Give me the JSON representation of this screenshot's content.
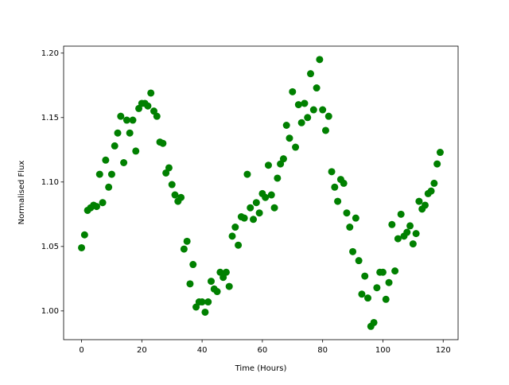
{
  "chart_data": {
    "type": "scatter",
    "xlabel": "Time (Hours)",
    "ylabel": "Normalised Flux",
    "color": "#008000",
    "x": [
      0,
      1,
      2,
      3,
      4,
      5,
      6,
      7,
      8,
      9,
      10,
      11,
      12,
      13,
      14,
      15,
      16,
      17,
      18,
      19,
      20,
      21,
      22,
      23,
      24,
      25,
      26,
      27,
      28,
      29,
      30,
      31,
      32,
      33,
      34,
      35,
      36,
      37,
      38,
      39,
      40,
      41,
      42,
      43,
      44,
      45,
      46,
      47,
      48,
      49,
      50,
      51,
      52,
      53,
      54,
      55,
      56,
      57,
      58,
      59,
      60,
      61,
      62,
      63,
      64,
      65,
      66,
      67,
      68,
      69,
      70,
      71,
      72,
      73,
      74,
      75,
      76,
      77,
      78,
      79,
      80,
      81,
      82,
      83,
      84,
      85,
      86,
      87,
      88,
      89,
      90,
      91,
      92,
      93,
      94,
      95,
      96,
      97,
      98,
      99,
      100,
      101,
      102,
      103,
      104,
      105,
      106,
      107,
      108,
      109,
      110,
      111,
      112,
      113,
      114,
      115,
      116,
      117,
      118,
      119
    ],
    "values": [
      1.049,
      1.059,
      1.078,
      1.08,
      1.082,
      1.081,
      1.106,
      1.084,
      1.117,
      1.096,
      1.106,
      1.128,
      1.138,
      1.151,
      1.115,
      1.148,
      1.138,
      1.148,
      1.124,
      1.157,
      1.161,
      1.161,
      1.159,
      1.169,
      1.155,
      1.151,
      1.131,
      1.13,
      1.107,
      1.111,
      1.098,
      1.09,
      1.085,
      1.088,
      1.048,
      1.054,
      1.021,
      1.036,
      1.003,
      1.007,
      1.007,
      0.999,
      1.007,
      1.023,
      1.017,
      1.015,
      1.03,
      1.026,
      1.03,
      1.019,
      1.058,
      1.065,
      1.051,
      1.073,
      1.072,
      1.106,
      1.08,
      1.071,
      1.084,
      1.076,
      1.091,
      1.088,
      1.113,
      1.09,
      1.08,
      1.103,
      1.114,
      1.118,
      1.144,
      1.134,
      1.17,
      1.127,
      1.16,
      1.146,
      1.161,
      1.15,
      1.184,
      1.156,
      1.173,
      1.195,
      1.156,
      1.14,
      1.151,
      1.108,
      1.096,
      1.085,
      1.102,
      1.099,
      1.076,
      1.065,
      1.046,
      1.072,
      1.039,
      1.013,
      1.027,
      1.01,
      0.988,
      0.991,
      1.018,
      1.03,
      1.03,
      1.009,
      1.022,
      1.067,
      1.031,
      1.056,
      1.075,
      1.058,
      1.061,
      1.066,
      1.052,
      1.06,
      1.085,
      1.079,
      1.082,
      1.091,
      1.093,
      1.099,
      1.114,
      1.123
    ],
    "xlim": [
      -5.95,
      124.95
    ],
    "xticks": [
      0,
      20,
      40,
      60,
      80,
      100,
      120
    ],
    "ylim": [
      0.9777,
      1.2054
    ],
    "yticks": [
      {
        "value": 1.0,
        "label": "1.00"
      },
      {
        "value": 1.05,
        "label": "1.05"
      },
      {
        "value": 1.1,
        "label": "1.10"
      },
      {
        "value": 1.15,
        "label": "1.15"
      },
      {
        "value": 1.2,
        "label": "1.20"
      }
    ]
  }
}
